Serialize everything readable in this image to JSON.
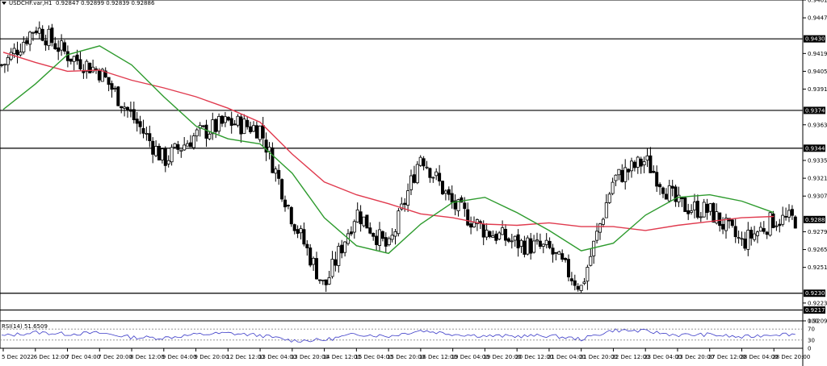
{
  "header": {
    "symbol": "USDCHF.var,H1",
    "ohlc": "0.92847 0.92899 0.92839 0.92886"
  },
  "rsi_panel": {
    "label": "RSI(14) 51.6509",
    "levels": [
      "100",
      "70",
      "30",
      "0"
    ]
  },
  "colors": {
    "candle": "#000000",
    "ma_fast": "#2e9b2e",
    "ma_slow": "#e03a4e",
    "rsi": "#3b3bc8",
    "level_line": "#000000",
    "price_box": "#000000"
  },
  "chart_data": {
    "type": "line",
    "instrument": "USDCHF.var",
    "timeframe": "H1",
    "ylim": [
      0.9209,
      0.9461
    ],
    "price_ticks": [
      "0.94610",
      "0.94470",
      "0.94305",
      "0.94190",
      "0.94050",
      "0.93910",
      "0.93743",
      "0.93630",
      "0.93446",
      "0.93350",
      "0.93210",
      "0.93070",
      "0.92886",
      "0.92790",
      "0.92650",
      "0.92510",
      "0.92307",
      "0.92230",
      "0.92175",
      "0.92090"
    ],
    "horizontal_levels": [
      0.94305,
      0.93743,
      0.93446,
      0.92307,
      0.92175
    ],
    "current_price": 0.92886,
    "x_labels": [
      "5 Dec 2022",
      "6 Dec 12:00",
      "7 Dec 04:00",
      "7 Dec 20:00",
      "8 Dec 12:00",
      "9 Dec 04:00",
      "9 Dec 20:00",
      "12 Dec 12:00",
      "13 Dec 04:00",
      "13 Dec 20:00",
      "14 Dec 12:00",
      "15 Dec 04:00",
      "15 Dec 20:00",
      "16 Dec 12:00",
      "19 Dec 04:00",
      "19 Dec 20:00",
      "20 Dec 12:00",
      "21 Dec 04:00",
      "21 Dec 20:00",
      "22 Dec 12:00",
      "23 Dec 04:00",
      "23 Dec 20:00",
      "27 Dec 12:00",
      "28 Dec 04:00",
      "28 Dec 20:00"
    ],
    "close_path": [
      {
        "x": "5 Dec 2022",
        "y": 0.941
      },
      {
        "x": "6 Dec 12:00",
        "y": 0.944
      },
      {
        "x": "7 Dec 04:00",
        "y": 0.9418
      },
      {
        "x": "7 Dec 20:00",
        "y": 0.9405
      },
      {
        "x": "8 Dec 12:00",
        "y": 0.937
      },
      {
        "x": "9 Dec 04:00",
        "y": 0.9335
      },
      {
        "x": "9 Dec 20:00",
        "y": 0.9355
      },
      {
        "x": "12 Dec 12:00",
        "y": 0.9365
      },
      {
        "x": "13 Dec 04:00",
        "y": 0.936
      },
      {
        "x": "13 Dec 20:00",
        "y": 0.929
      },
      {
        "x": "14 Dec 12:00",
        "y": 0.9235
      },
      {
        "x": "15 Dec 04:00",
        "y": 0.9295
      },
      {
        "x": "15 Dec 20:00",
        "y": 0.9265
      },
      {
        "x": "16 Dec 12:00",
        "y": 0.934
      },
      {
        "x": "19 Dec 04:00",
        "y": 0.93
      },
      {
        "x": "19 Dec 20:00",
        "y": 0.928
      },
      {
        "x": "20 Dec 12:00",
        "y": 0.927
      },
      {
        "x": "21 Dec 04:00",
        "y": 0.9265
      },
      {
        "x": "21 Dec 20:00",
        "y": 0.9235
      },
      {
        "x": "22 Dec 12:00",
        "y": 0.932
      },
      {
        "x": "23 Dec 04:00",
        "y": 0.9335
      },
      {
        "x": "23 Dec 20:00",
        "y": 0.93
      },
      {
        "x": "27 Dec 12:00",
        "y": 0.9295
      },
      {
        "x": "28 Dec 04:00",
        "y": 0.927
      },
      {
        "x": "28 Dec 20:00",
        "y": 0.92886
      }
    ],
    "ma_fast": [
      {
        "x": "5 Dec 2022",
        "y": 0.9375
      },
      {
        "x": "6 Dec 12:00",
        "y": 0.9395
      },
      {
        "x": "7 Dec 04:00",
        "y": 0.9418
      },
      {
        "x": "7 Dec 20:00",
        "y": 0.9425
      },
      {
        "x": "8 Dec 12:00",
        "y": 0.941
      },
      {
        "x": "9 Dec 04:00",
        "y": 0.9385
      },
      {
        "x": "9 Dec 20:00",
        "y": 0.9362
      },
      {
        "x": "12 Dec 12:00",
        "y": 0.9352
      },
      {
        "x": "13 Dec 04:00",
        "y": 0.9348
      },
      {
        "x": "13 Dec 20:00",
        "y": 0.9325
      },
      {
        "x": "14 Dec 12:00",
        "y": 0.929
      },
      {
        "x": "15 Dec 04:00",
        "y": 0.9268
      },
      {
        "x": "15 Dec 20:00",
        "y": 0.9262
      },
      {
        "x": "16 Dec 12:00",
        "y": 0.9285
      },
      {
        "x": "19 Dec 04:00",
        "y": 0.9302
      },
      {
        "x": "19 Dec 20:00",
        "y": 0.9306
      },
      {
        "x": "20 Dec 12:00",
        "y": 0.9294
      },
      {
        "x": "21 Dec 04:00",
        "y": 0.928
      },
      {
        "x": "21 Dec 20:00",
        "y": 0.9264
      },
      {
        "x": "22 Dec 12:00",
        "y": 0.927
      },
      {
        "x": "23 Dec 04:00",
        "y": 0.9292
      },
      {
        "x": "23 Dec 20:00",
        "y": 0.9306
      },
      {
        "x": "27 Dec 12:00",
        "y": 0.9308
      },
      {
        "x": "28 Dec 04:00",
        "y": 0.9303
      },
      {
        "x": "28 Dec 20:00",
        "y": 0.9294
      }
    ],
    "ma_slow": [
      {
        "x": "5 Dec 2022",
        "y": 0.942
      },
      {
        "x": "6 Dec 12:00",
        "y": 0.9412
      },
      {
        "x": "7 Dec 04:00",
        "y": 0.9405
      },
      {
        "x": "7 Dec 20:00",
        "y": 0.9406
      },
      {
        "x": "8 Dec 12:00",
        "y": 0.9398
      },
      {
        "x": "9 Dec 04:00",
        "y": 0.9392
      },
      {
        "x": "9 Dec 20:00",
        "y": 0.9385
      },
      {
        "x": "12 Dec 12:00",
        "y": 0.9376
      },
      {
        "x": "13 Dec 04:00",
        "y": 0.9365
      },
      {
        "x": "13 Dec 20:00",
        "y": 0.934
      },
      {
        "x": "14 Dec 12:00",
        "y": 0.9318
      },
      {
        "x": "15 Dec 04:00",
        "y": 0.9308
      },
      {
        "x": "15 Dec 20:00",
        "y": 0.9301
      },
      {
        "x": "16 Dec 12:00",
        "y": 0.9293
      },
      {
        "x": "19 Dec 04:00",
        "y": 0.929
      },
      {
        "x": "19 Dec 20:00",
        "y": 0.9285
      },
      {
        "x": "20 Dec 12:00",
        "y": 0.9284
      },
      {
        "x": "21 Dec 04:00",
        "y": 0.9286
      },
      {
        "x": "21 Dec 20:00",
        "y": 0.9283
      },
      {
        "x": "22 Dec 12:00",
        "y": 0.9283
      },
      {
        "x": "23 Dec 04:00",
        "y": 0.928
      },
      {
        "x": "23 Dec 20:00",
        "y": 0.9284
      },
      {
        "x": "27 Dec 12:00",
        "y": 0.9287
      },
      {
        "x": "28 Dec 04:00",
        "y": 0.929
      },
      {
        "x": "28 Dec 20:00",
        "y": 0.9291
      }
    ],
    "rsi": {
      "value": 51.6509,
      "period": 14,
      "levels": [
        100,
        70,
        30,
        0
      ],
      "ylim": [
        0,
        100
      ],
      "approx_path": [
        {
          "x": "5 Dec 2022",
          "y": 45
        },
        {
          "x": "6 Dec 12:00",
          "y": 58
        },
        {
          "x": "7 Dec 04:00",
          "y": 52
        },
        {
          "x": "7 Dec 20:00",
          "y": 56
        },
        {
          "x": "8 Dec 12:00",
          "y": 40
        },
        {
          "x": "9 Dec 04:00",
          "y": 38
        },
        {
          "x": "9 Dec 20:00",
          "y": 50
        },
        {
          "x": "12 Dec 12:00",
          "y": 55
        },
        {
          "x": "13 Dec 04:00",
          "y": 47
        },
        {
          "x": "13 Dec 20:00",
          "y": 28
        },
        {
          "x": "14 Dec 12:00",
          "y": 30
        },
        {
          "x": "15 Dec 04:00",
          "y": 52
        },
        {
          "x": "15 Dec 20:00",
          "y": 44
        },
        {
          "x": "16 Dec 12:00",
          "y": 65
        },
        {
          "x": "19 Dec 04:00",
          "y": 52
        },
        {
          "x": "19 Dec 20:00",
          "y": 45
        },
        {
          "x": "20 Dec 12:00",
          "y": 44
        },
        {
          "x": "21 Dec 04:00",
          "y": 46
        },
        {
          "x": "21 Dec 20:00",
          "y": 33
        },
        {
          "x": "22 Dec 12:00",
          "y": 66
        },
        {
          "x": "23 Dec 04:00",
          "y": 62
        },
        {
          "x": "23 Dec 20:00",
          "y": 48
        },
        {
          "x": "27 Dec 12:00",
          "y": 50
        },
        {
          "x": "28 Dec 04:00",
          "y": 40
        },
        {
          "x": "28 Dec 20:00",
          "y": 51.65
        }
      ]
    }
  }
}
